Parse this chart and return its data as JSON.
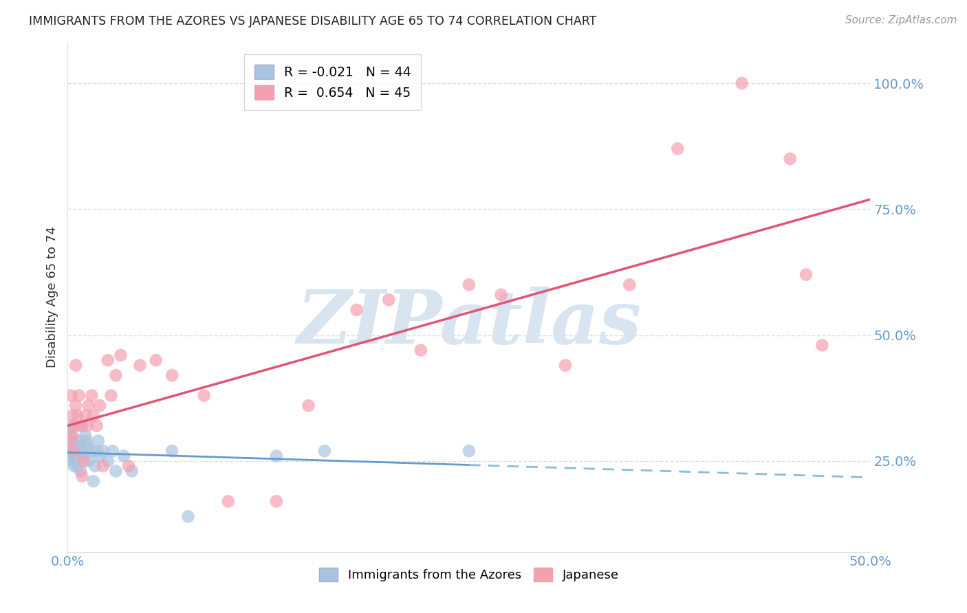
{
  "title": "IMMIGRANTS FROM THE AZORES VS JAPANESE DISABILITY AGE 65 TO 74 CORRELATION CHART",
  "source": "Source: ZipAtlas.com",
  "xlabel_blue": "Immigrants from the Azores",
  "xlabel_pink": "Japanese",
  "ylabel": "Disability Age 65 to 74",
  "legend_blue_R": "-0.021",
  "legend_blue_N": "44",
  "legend_pink_R": "0.654",
  "legend_pink_N": "45",
  "watermark": "ZIPatlas",
  "xlim": [
    0.0,
    0.5
  ],
  "ylim": [
    0.07,
    1.08
  ],
  "xtick_positions": [
    0.0,
    0.5
  ],
  "xtick_labels": [
    "0.0%",
    "50.0%"
  ],
  "ytick_positions": [
    0.25,
    0.5,
    0.75,
    1.0
  ],
  "ytick_labels": [
    "25.0%",
    "50.0%",
    "75.0%",
    "100.0%"
  ],
  "blue_color": "#aac4e0",
  "pink_color": "#f4a0b0",
  "blue_line_color_solid": "#6699cc",
  "blue_line_color_dash": "#88bbdd",
  "pink_line_color": "#e05575",
  "blue_x": [
    0.001,
    0.001,
    0.002,
    0.002,
    0.002,
    0.003,
    0.003,
    0.003,
    0.003,
    0.004,
    0.004,
    0.005,
    0.005,
    0.005,
    0.006,
    0.006,
    0.007,
    0.007,
    0.008,
    0.008,
    0.009,
    0.009,
    0.01,
    0.011,
    0.012,
    0.012,
    0.013,
    0.015,
    0.016,
    0.017,
    0.018,
    0.019,
    0.02,
    0.022,
    0.025,
    0.028,
    0.03,
    0.035,
    0.04,
    0.065,
    0.075,
    0.13,
    0.16,
    0.25
  ],
  "blue_y": [
    0.27,
    0.31,
    0.26,
    0.28,
    0.3,
    0.25,
    0.27,
    0.29,
    0.32,
    0.24,
    0.26,
    0.25,
    0.26,
    0.28,
    0.24,
    0.27,
    0.26,
    0.28,
    0.29,
    0.23,
    0.27,
    0.32,
    0.26,
    0.3,
    0.28,
    0.29,
    0.25,
    0.27,
    0.21,
    0.24,
    0.27,
    0.29,
    0.26,
    0.27,
    0.25,
    0.27,
    0.23,
    0.26,
    0.23,
    0.27,
    0.14,
    0.26,
    0.27,
    0.27
  ],
  "pink_x": [
    0.001,
    0.002,
    0.003,
    0.003,
    0.004,
    0.004,
    0.005,
    0.005,
    0.006,
    0.007,
    0.008,
    0.009,
    0.01,
    0.011,
    0.012,
    0.013,
    0.015,
    0.016,
    0.018,
    0.02,
    0.022,
    0.025,
    0.027,
    0.03,
    0.033,
    0.038,
    0.045,
    0.055,
    0.065,
    0.085,
    0.1,
    0.13,
    0.15,
    0.18,
    0.2,
    0.22,
    0.25,
    0.27,
    0.31,
    0.35,
    0.38,
    0.42,
    0.45,
    0.46,
    0.47
  ],
  "pink_y": [
    0.29,
    0.38,
    0.3,
    0.34,
    0.27,
    0.32,
    0.36,
    0.44,
    0.34,
    0.38,
    0.32,
    0.22,
    0.25,
    0.34,
    0.32,
    0.36,
    0.38,
    0.34,
    0.32,
    0.36,
    0.24,
    0.45,
    0.38,
    0.42,
    0.46,
    0.24,
    0.44,
    0.45,
    0.42,
    0.38,
    0.17,
    0.17,
    0.36,
    0.55,
    0.57,
    0.47,
    0.6,
    0.58,
    0.44,
    0.6,
    0.87,
    1.0,
    0.85,
    0.62,
    0.48
  ],
  "background_color": "#ffffff",
  "grid_color": "#d8dfe8",
  "title_color": "#222222",
  "axis_tick_color": "#6699cc",
  "ylabel_color": "#333333",
  "watermark_color": "#d8e4f0"
}
